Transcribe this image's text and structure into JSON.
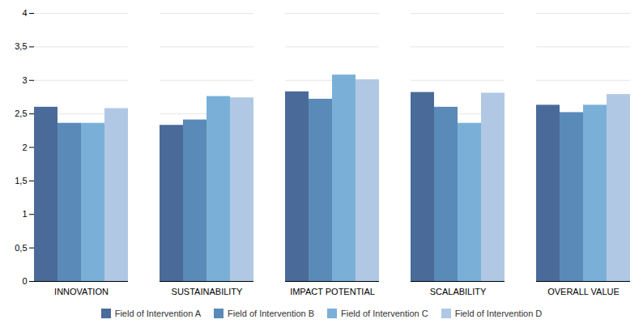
{
  "chart_data": {
    "type": "bar",
    "categories": [
      "INNOVATION",
      "SUSTAINABILITY",
      "IMPACT POTENTIAL",
      "SCALABILITY",
      "OVERALL VALUE"
    ],
    "series": [
      {
        "name": "Field of Intervention A",
        "color": "#4a6b99",
        "values": [
          2.6,
          2.33,
          2.83,
          2.82,
          2.63
        ]
      },
      {
        "name": "Field of Intervention B",
        "color": "#5a8ab8",
        "values": [
          2.36,
          2.41,
          2.72,
          2.6,
          2.52
        ]
      },
      {
        "name": "Field of Intervention C",
        "color": "#7ab0d8",
        "values": [
          2.36,
          2.76,
          3.08,
          2.36,
          2.63
        ]
      },
      {
        "name": "Field of Intervention D",
        "color": "#b0c8e4",
        "values": [
          2.58,
          2.74,
          3.01,
          2.81,
          2.79
        ]
      }
    ],
    "ylim": [
      0,
      4
    ],
    "yticks": [
      0,
      {
        "value": 0.5,
        "label": "0,5"
      },
      1,
      {
        "value": 1.5,
        "label": "1,5"
      },
      2,
      {
        "value": 2.5,
        "label": "2,5"
      },
      3,
      {
        "value": 3.5,
        "label": "3,5"
      },
      4
    ],
    "grid": true,
    "legend": "bottom"
  }
}
